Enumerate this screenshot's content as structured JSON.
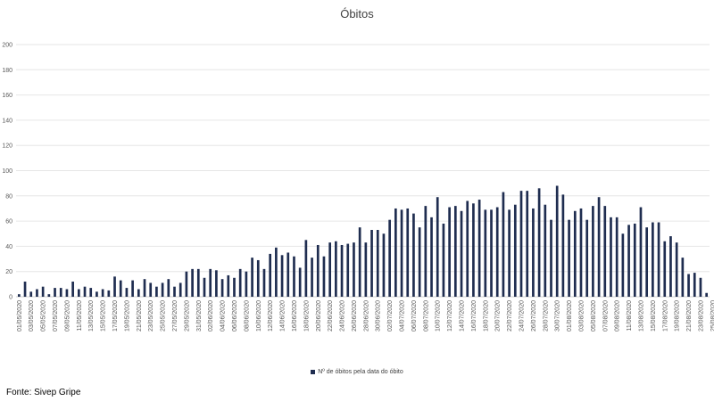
{
  "chart_data": {
    "type": "bar",
    "title": "Óbitos",
    "xlabel": "",
    "ylabel": "",
    "ylim": [
      0,
      200
    ],
    "yticks": [
      0,
      20,
      40,
      60,
      80,
      100,
      120,
      140,
      160,
      180,
      200
    ],
    "grid": true,
    "legend_position": "bottom",
    "bar_color": "#1f2d50",
    "series": [
      {
        "name": "Nº de óbitos pela data do óbito",
        "values": [
          2,
          12,
          4,
          6,
          8,
          2,
          7,
          7,
          6,
          12,
          6,
          8,
          7,
          4,
          6,
          5,
          16,
          13,
          7,
          13,
          6,
          14,
          11,
          8,
          11,
          14,
          8,
          11,
          20,
          22,
          22,
          15,
          22,
          21,
          14,
          17,
          15,
          22,
          20,
          31,
          29,
          22,
          34,
          39,
          33,
          35,
          32,
          23,
          45,
          31,
          41,
          32,
          43,
          44,
          41,
          42,
          43,
          55,
          43,
          53,
          53,
          50,
          61,
          70,
          69,
          70,
          66,
          55,
          72,
          63,
          79,
          58,
          71,
          72,
          68,
          76,
          74,
          77,
          69,
          69,
          71,
          83,
          69,
          73,
          84,
          84,
          70,
          86,
          73,
          61,
          88,
          81,
          61,
          68,
          70,
          61,
          72,
          79,
          72,
          63,
          63,
          50,
          57,
          58,
          71,
          55,
          59,
          59,
          44,
          48,
          43,
          31,
          18,
          19,
          15,
          3
        ]
      }
    ],
    "x_tick_labels": [
      "01/05/2020",
      "03/05/2020",
      "05/05/2020",
      "07/05/2020",
      "09/05/2020",
      "11/05/2020",
      "13/05/2020",
      "15/05/2020",
      "17/05/2020",
      "19/05/2020",
      "21/05/2020",
      "23/05/2020",
      "25/05/2020",
      "27/05/2020",
      "29/05/2020",
      "31/05/2020",
      "02/06/2020",
      "04/06/2020",
      "06/06/2020",
      "08/06/2020",
      "10/06/2020",
      "12/06/2020",
      "14/06/2020",
      "16/06/2020",
      "18/06/2020",
      "20/06/2020",
      "22/06/2020",
      "24/06/2020",
      "26/06/2020",
      "28/06/2020",
      "30/06/2020",
      "02/07/2020",
      "04/07/2020",
      "06/07/2020",
      "08/07/2020",
      "10/07/2020",
      "12/07/2020",
      "14/07/2020",
      "16/07/2020",
      "18/07/2020",
      "20/07/2020",
      "22/07/2020",
      "24/07/2020",
      "26/07/2020",
      "28/07/2020",
      "30/07/2020",
      "01/08/2020",
      "03/08/2020",
      "05/08/2020",
      "07/08/2020",
      "09/08/2020",
      "11/08/2020",
      "13/08/2020",
      "15/08/2020",
      "17/08/2020",
      "19/08/2020",
      "21/08/2020",
      "23/08/2020",
      "25/08/2020"
    ]
  },
  "legend": {
    "label": "Nº de óbitos pela data do óbito"
  },
  "source": "Fonte: Sivep Gripe"
}
